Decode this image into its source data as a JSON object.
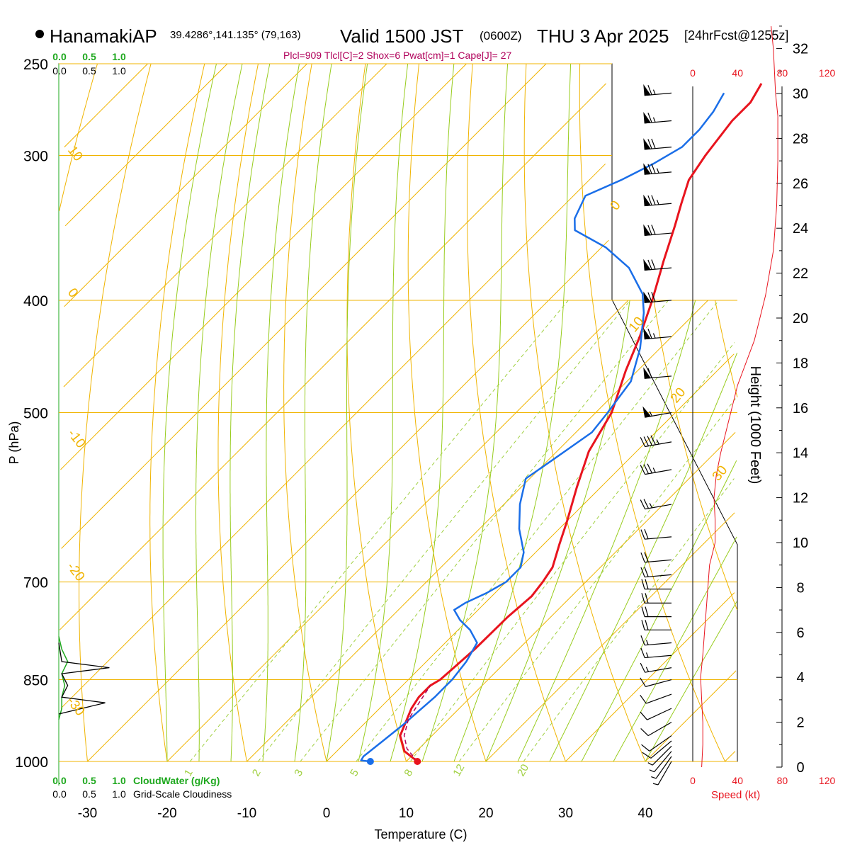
{
  "header": {
    "station_name": "HanamakiAP",
    "station_coords": "39.4286°,141.135° (79,163)",
    "valid_main": "Valid 1500 JST",
    "valid_utc": "(0600Z)",
    "valid_date": "THU 3 Apr 2025",
    "forecast_info": "[24hrFcst@1255z]",
    "indices": "Plcl=909 Tlcl[C]=2 Shox=6 Pwat[cm]=1 Cape[J]= 27"
  },
  "colors": {
    "temperature": "#e8141e",
    "dewpoint": "#1a6ee8",
    "isotherm_isobar": "#f0b400",
    "moist_adiabat": "#98cc1e",
    "mixing_ratio": "#a0d040",
    "cloud_water": "#1ea81e",
    "speed": "#e8141e",
    "parcel": "#b0005a"
  },
  "chart_data": {
    "type": "line",
    "title": "Valid 1500 JST (0600Z) THU 3 Apr 2025",
    "xlabel": "Temperature (C)",
    "ylabel": "P (hPa)",
    "y2label": "Height (1000 Feet)",
    "xlim": [
      -33,
      43
    ],
    "ylim": [
      1000,
      250
    ],
    "x_ticks": [
      "-30",
      "-20",
      "-10",
      "0",
      "10",
      "20",
      "30",
      "40"
    ],
    "pressure_ticks": [
      "250",
      "300",
      "400",
      "500",
      "700",
      "850",
      "1000"
    ],
    "height_ticks": [
      "0",
      "2",
      "4",
      "6",
      "8",
      "10",
      "12",
      "14",
      "16",
      "18",
      "20",
      "22",
      "24",
      "26",
      "28",
      "30",
      "32"
    ],
    "isotherm_labels": [
      "10",
      "0",
      "-10",
      "-20",
      "-30",
      "0",
      "10",
      "20",
      "30"
    ],
    "mixing_ratio_labels": [
      "1",
      "2",
      "3",
      "5",
      "8",
      "12",
      "20"
    ],
    "cloud_scale_labels": [
      "0.0",
      "0.5",
      "1.0"
    ],
    "cloud_scale_labels_top": [
      "0.0",
      "0.5",
      "1.0"
    ],
    "cloud_water_label": "CloudWater (g/Kg)",
    "cloudiness_label": "Grid-Scale Cloudiness",
    "speed_ticks": [
      "0",
      "40",
      "80",
      "120"
    ],
    "speed_label": "Speed (kt)",
    "series": [
      {
        "name": "Temperature",
        "points": [
          [
            11.4,
            1000
          ],
          [
            8.5,
            980
          ],
          [
            6.0,
            950
          ],
          [
            4.0,
            900
          ],
          [
            3.5,
            880
          ],
          [
            3.5,
            860
          ],
          [
            4.0,
            850
          ],
          [
            4.5,
            800
          ],
          [
            4.6,
            750
          ],
          [
            5.0,
            720
          ],
          [
            4.6,
            700
          ],
          [
            4.0,
            680
          ],
          [
            2.0,
            650
          ],
          [
            0.0,
            620
          ],
          [
            -3.0,
            580
          ],
          [
            -6.0,
            540
          ],
          [
            -8.0,
            500
          ],
          [
            -11.5,
            460
          ],
          [
            -14.0,
            430
          ],
          [
            -17.0,
            400
          ],
          [
            -20.5,
            370
          ],
          [
            -23.5,
            345
          ],
          [
            -25.5,
            330
          ],
          [
            -27.5,
            315
          ],
          [
            -28.5,
            300
          ],
          [
            -29.0,
            290
          ],
          [
            -29.5,
            280
          ],
          [
            -29.5,
            270
          ],
          [
            -30.5,
            260
          ]
        ]
      },
      {
        "name": "Dewpoint",
        "points": [
          [
            5.5,
            1000
          ],
          [
            4.2,
            998
          ],
          [
            4.0,
            990
          ],
          [
            4.5,
            960
          ],
          [
            5.0,
            930
          ],
          [
            5.3,
            900
          ],
          [
            5.5,
            880
          ],
          [
            5.5,
            860
          ],
          [
            5.5,
            850
          ],
          [
            5.0,
            820
          ],
          [
            4.0,
            790
          ],
          [
            1.5,
            770
          ],
          [
            -1.0,
            755
          ],
          [
            -3.0,
            740
          ],
          [
            -2.5,
            730
          ],
          [
            -1.0,
            715
          ],
          [
            0.0,
            700
          ],
          [
            0.0,
            680
          ],
          [
            -1.5,
            660
          ],
          [
            -5.0,
            630
          ],
          [
            -8.0,
            600
          ],
          [
            -10.5,
            570
          ],
          [
            -9.5,
            550
          ],
          [
            -8.0,
            520
          ],
          [
            -8.5,
            500
          ],
          [
            -9.5,
            470
          ],
          [
            -12.5,
            440
          ],
          [
            -16.5,
            410
          ],
          [
            -19.0,
            395
          ],
          [
            -24.0,
            375
          ],
          [
            -29.5,
            360
          ],
          [
            -35.5,
            348
          ],
          [
            -37.0,
            340
          ],
          [
            -38.5,
            325
          ],
          [
            -36.0,
            315
          ],
          [
            -34.0,
            305
          ],
          [
            -32.5,
            295
          ],
          [
            -32.5,
            285
          ],
          [
            -33.0,
            275
          ],
          [
            -34.0,
            265
          ]
        ]
      },
      {
        "name": "Parcel",
        "points": [
          [
            11.4,
            1000
          ],
          [
            8.5,
            975
          ],
          [
            6.5,
            950
          ],
          [
            5.0,
            920
          ],
          [
            4.5,
            900
          ],
          [
            4.0,
            880
          ],
          [
            3.5,
            860
          ]
        ]
      }
    ],
    "cloud_water_g_per_kg": [
      [
        0.0,
        780
      ],
      [
        0.05,
        800
      ],
      [
        0.15,
        820
      ],
      [
        0.05,
        840
      ],
      [
        0.1,
        860
      ],
      [
        0.05,
        880
      ],
      [
        0.05,
        900
      ],
      [
        0.0,
        920
      ]
    ],
    "cloudiness": [
      [
        0.0,
        790
      ],
      [
        0.05,
        820
      ],
      [
        0.85,
        830
      ],
      [
        0.05,
        840
      ],
      [
        0.15,
        860
      ],
      [
        0.05,
        880
      ],
      [
        0.78,
        890
      ],
      [
        0.0,
        910
      ]
    ],
    "speed_profile_kt": [
      [
        8,
        0
      ],
      [
        9,
        1
      ],
      [
        9,
        2
      ],
      [
        8,
        3
      ],
      [
        7,
        4
      ],
      [
        9,
        5
      ],
      [
        12,
        7
      ],
      [
        15,
        9
      ],
      [
        20,
        10
      ],
      [
        20,
        11
      ],
      [
        19,
        12
      ],
      [
        21,
        13
      ],
      [
        25,
        14
      ],
      [
        30,
        15
      ],
      [
        40,
        17
      ],
      [
        55,
        19
      ],
      [
        65,
        21
      ],
      [
        72,
        23
      ],
      [
        75,
        25
      ],
      [
        76,
        27
      ],
      [
        76,
        29
      ],
      [
        74,
        30
      ],
      [
        72,
        32
      ],
      [
        70,
        33
      ]
    ],
    "wind_barbs": [
      {
        "p": 1000,
        "dir": 210,
        "spd": 5
      },
      {
        "p": 990,
        "dir": 215,
        "spd": 5
      },
      {
        "p": 980,
        "dir": 220,
        "spd": 5
      },
      {
        "p": 970,
        "dir": 225,
        "spd": 5
      },
      {
        "p": 960,
        "dir": 230,
        "spd": 10
      },
      {
        "p": 950,
        "dir": 235,
        "spd": 10
      },
      {
        "p": 925,
        "dir": 240,
        "spd": 10
      },
      {
        "p": 900,
        "dir": 245,
        "spd": 10
      },
      {
        "p": 875,
        "dir": 250,
        "spd": 10
      },
      {
        "p": 850,
        "dir": 255,
        "spd": 10
      },
      {
        "p": 830,
        "dir": 260,
        "spd": 15
      },
      {
        "p": 810,
        "dir": 265,
        "spd": 15
      },
      {
        "p": 790,
        "dir": 265,
        "spd": 15
      },
      {
        "p": 770,
        "dir": 270,
        "spd": 20
      },
      {
        "p": 750,
        "dir": 270,
        "spd": 20
      },
      {
        "p": 730,
        "dir": 270,
        "spd": 20
      },
      {
        "p": 710,
        "dir": 270,
        "spd": 20
      },
      {
        "p": 690,
        "dir": 265,
        "spd": 20
      },
      {
        "p": 670,
        "dir": 265,
        "spd": 20
      },
      {
        "p": 640,
        "dir": 265,
        "spd": 20
      },
      {
        "p": 600,
        "dir": 260,
        "spd": 25
      },
      {
        "p": 560,
        "dir": 260,
        "spd": 35
      },
      {
        "p": 530,
        "dir": 260,
        "spd": 45
      },
      {
        "p": 500,
        "dir": 260,
        "spd": 55
      },
      {
        "p": 465,
        "dir": 265,
        "spd": 60
      },
      {
        "p": 430,
        "dir": 265,
        "spd": 65
      },
      {
        "p": 400,
        "dir": 265,
        "spd": 70
      },
      {
        "p": 375,
        "dir": 265,
        "spd": 70
      },
      {
        "p": 350,
        "dir": 265,
        "spd": 70
      },
      {
        "p": 330,
        "dir": 265,
        "spd": 75
      },
      {
        "p": 310,
        "dir": 265,
        "spd": 75
      },
      {
        "p": 295,
        "dir": 265,
        "spd": 70
      },
      {
        "p": 280,
        "dir": 265,
        "spd": 65
      },
      {
        "p": 265,
        "dir": 265,
        "spd": 65
      }
    ]
  }
}
